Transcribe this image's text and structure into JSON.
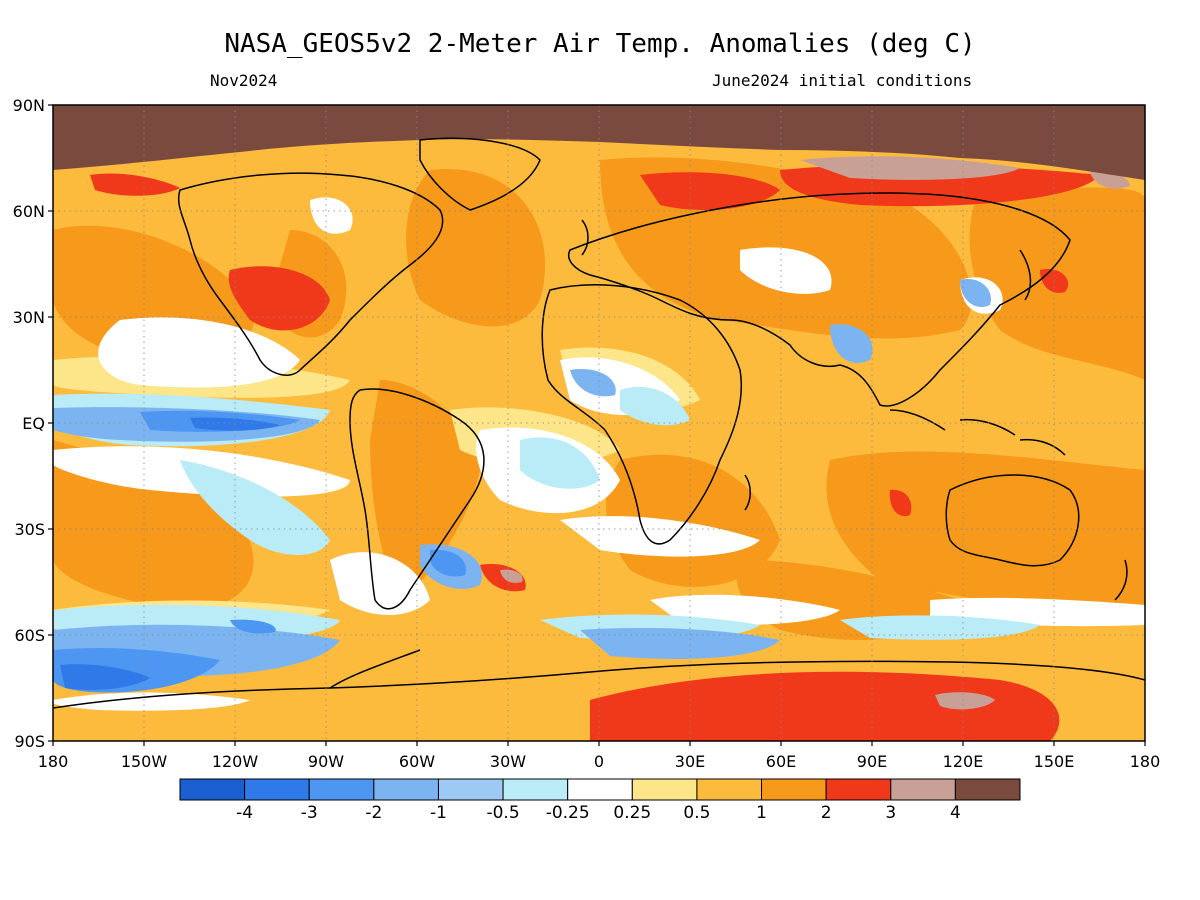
{
  "header": {
    "title": "NASA_GEOS5v2 2-Meter Air Temp. Anomalies (deg C)",
    "valid_month": "Nov2024",
    "init_conditions": "June2024 initial conditions"
  },
  "axes": {
    "lat_labels": [
      "90N",
      "60N",
      "30N",
      "EQ",
      "30S",
      "60S",
      "90S"
    ],
    "lon_labels": [
      "180",
      "150W",
      "120W",
      "90W",
      "60W",
      "30W",
      "0",
      "30E",
      "60E",
      "90E",
      "120E",
      "150E",
      "180"
    ]
  },
  "colorbar": {
    "labels": [
      "-4",
      "-3",
      "-2",
      "-1",
      "-0.5",
      "-0.25",
      "0.25",
      "0.5",
      "1",
      "2",
      "3",
      "4"
    ],
    "colors": [
      "#1a5fd0",
      "#2f79e8",
      "#4d97f2",
      "#7cb4f2",
      "#9dcaf4",
      "#b9ecf7",
      "#ffffff",
      "#fde68a",
      "#fdbb3e",
      "#f79a1b",
      "#f0391a",
      "#c8a096",
      "#7a4a3e"
    ]
  },
  "palette": {
    "ocean_warm": "#fdbb3e",
    "land_warm": "#f79a1b",
    "hot": "#f0391a",
    "very_hot": "#c8a096",
    "extreme": "#7a4a3e",
    "cool": "#b9ecf7",
    "cold": "#7cb4f2",
    "colder": "#4d97f2",
    "coldest": "#2f79e8",
    "neutral": "#ffffff",
    "slight_warm": "#fde68a"
  }
}
